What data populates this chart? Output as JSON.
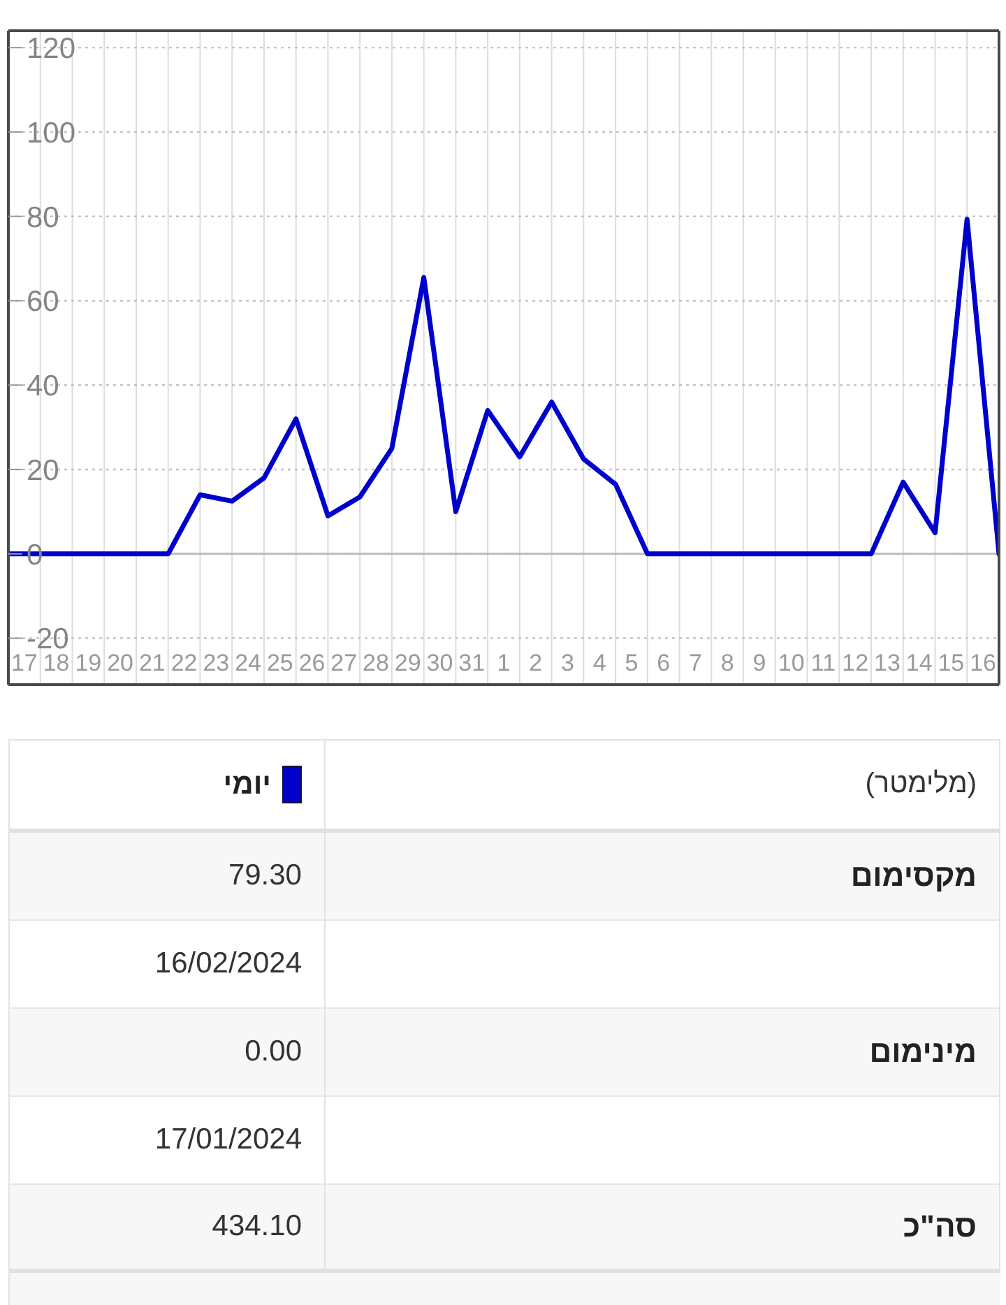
{
  "chart_data": {
    "type": "line",
    "x": [
      "2024-01-17",
      "2024-01-18",
      "2024-01-19",
      "2024-01-20",
      "2024-01-21",
      "2024-01-22",
      "2024-01-23",
      "2024-01-24",
      "2024-01-25",
      "2024-01-26",
      "2024-01-27",
      "2024-01-28",
      "2024-01-29",
      "2024-01-30",
      "2024-01-31",
      "2024-02-01",
      "2024-02-02",
      "2024-02-03",
      "2024-02-04",
      "2024-02-05",
      "2024-02-06",
      "2024-02-07",
      "2024-02-08",
      "2024-02-09",
      "2024-02-10",
      "2024-02-11",
      "2024-02-12",
      "2024-02-13",
      "2024-02-14",
      "2024-02-15",
      "2024-02-16",
      "2024-02-17"
    ],
    "series": [
      {
        "name": "יומי",
        "color": "#0000cc",
        "values": [
          0,
          0,
          0,
          0,
          0,
          0,
          14,
          12.5,
          18,
          32,
          9,
          13.5,
          25,
          65.5,
          10,
          34,
          23,
          36,
          22.5,
          16.5,
          0,
          0,
          0,
          0,
          0,
          0,
          0,
          0,
          17,
          5,
          79.3,
          0
        ]
      }
    ],
    "xlim": [
      "2024-01-17",
      "2024-02-17"
    ],
    "xticks": [
      {
        "value": "2024-01-17",
        "label": null
      },
      {
        "value": "2024-01-17T12:00",
        "label": "17"
      },
      {
        "value": "2024-01-18",
        "label": null
      },
      {
        "value": "2024-01-18T12:00",
        "label": "18"
      },
      {
        "value": "2024-01-19",
        "label": null
      },
      {
        "value": "2024-01-19T12:00",
        "label": "19"
      },
      {
        "value": "2024-01-20",
        "label": null
      },
      {
        "value": "2024-01-20T12:00",
        "label": "20"
      },
      {
        "value": "2024-01-21",
        "label": null
      },
      {
        "value": "2024-01-21T12:00",
        "label": "21"
      },
      {
        "value": "2024-01-22",
        "label": null
      },
      {
        "value": "2024-01-22T12:00",
        "label": "22"
      },
      {
        "value": "2024-01-23",
        "label": null
      },
      {
        "value": "2024-01-23T12:00",
        "label": "23"
      },
      {
        "value": "2024-01-24",
        "label": null
      },
      {
        "value": "2024-01-24T12:00",
        "label": "24"
      },
      {
        "value": "2024-01-25",
        "label": null
      },
      {
        "value": "2024-01-25T12:00",
        "label": "25"
      },
      {
        "value": "2024-01-26",
        "label": null
      },
      {
        "value": "2024-01-26T12:00",
        "label": "26"
      },
      {
        "value": "2024-01-27",
        "label": null
      },
      {
        "value": "2024-01-27T12:00",
        "label": "27"
      },
      {
        "value": "2024-01-28",
        "label": null
      },
      {
        "value": "2024-01-28T12:00",
        "label": "28"
      },
      {
        "value": "2024-01-29",
        "label": null
      },
      {
        "value": "2024-01-29T12:00",
        "label": "29"
      },
      {
        "value": "2024-01-30",
        "label": null
      },
      {
        "value": "2024-01-30T12:00",
        "label": "30"
      },
      {
        "value": "2024-01-31",
        "label": null
      },
      {
        "value": "2024-01-31T12:00",
        "label": "31"
      },
      {
        "value": "2024-02-01",
        "label": null
      },
      {
        "value": "2024-02-01T12:00",
        "label": "1"
      },
      {
        "value": "2024-02-02",
        "label": null
      },
      {
        "value": "2024-02-02T12:00",
        "label": "2"
      },
      {
        "value": "2024-02-03",
        "label": null
      },
      {
        "value": "2024-02-03T12:00",
        "label": "3"
      },
      {
        "value": "2024-02-04",
        "label": null
      },
      {
        "value": "2024-02-04T12:00",
        "label": "4"
      },
      {
        "value": "2024-02-05",
        "label": null
      },
      {
        "value": "2024-02-05T12:00",
        "label": "5"
      },
      {
        "value": "2024-02-06",
        "label": null
      },
      {
        "value": "2024-02-06T12:00",
        "label": "6"
      },
      {
        "value": "2024-02-07",
        "label": null
      },
      {
        "value": "2024-02-07T12:00",
        "label": "7"
      },
      {
        "value": "2024-02-08",
        "label": null
      },
      {
        "value": "2024-02-08T12:00",
        "label": "8"
      },
      {
        "value": "2024-02-09",
        "label": null
      },
      {
        "value": "2024-02-09T12:00",
        "label": "9"
      },
      {
        "value": "2024-02-10",
        "label": null
      },
      {
        "value": "2024-02-10T12:00",
        "label": "10"
      },
      {
        "value": "2024-02-11",
        "label": null
      },
      {
        "value": "2024-02-11T12:00",
        "label": "11"
      },
      {
        "value": "2024-02-12",
        "label": null
      },
      {
        "value": "2024-02-12T12:00",
        "label": "12"
      },
      {
        "value": "2024-02-13",
        "label": null
      },
      {
        "value": "2024-02-13T12:00",
        "label": "13"
      },
      {
        "value": "2024-02-14",
        "label": null
      },
      {
        "value": "2024-02-14T12:00",
        "label": "14"
      },
      {
        "value": "2024-02-15",
        "label": null
      },
      {
        "value": "2024-02-15T12:00",
        "label": "15"
      },
      {
        "value": "2024-02-16",
        "label": null
      },
      {
        "value": "2024-02-16T12:00",
        "label": "16"
      },
      {
        "value": "2024-02-17",
        "label": null
      }
    ],
    "ylim": [
      -31,
      124
    ],
    "yticks": [
      -20,
      0,
      20,
      40,
      60,
      80,
      100,
      120
    ],
    "grid": true,
    "legend": "bottom",
    "marker": "none",
    "line_style": "solid",
    "ref_lines": [
      {
        "axis": "y",
        "value": 0,
        "color": "#bbbbbb"
      }
    ],
    "annotations": [
      "(מלימטר)",
      "מקסימום",
      "79.30",
      "16/02/2024",
      "מינימום",
      "0.00",
      "17/01/2024",
      "סה\"כ",
      "434.10"
    ]
  }
}
